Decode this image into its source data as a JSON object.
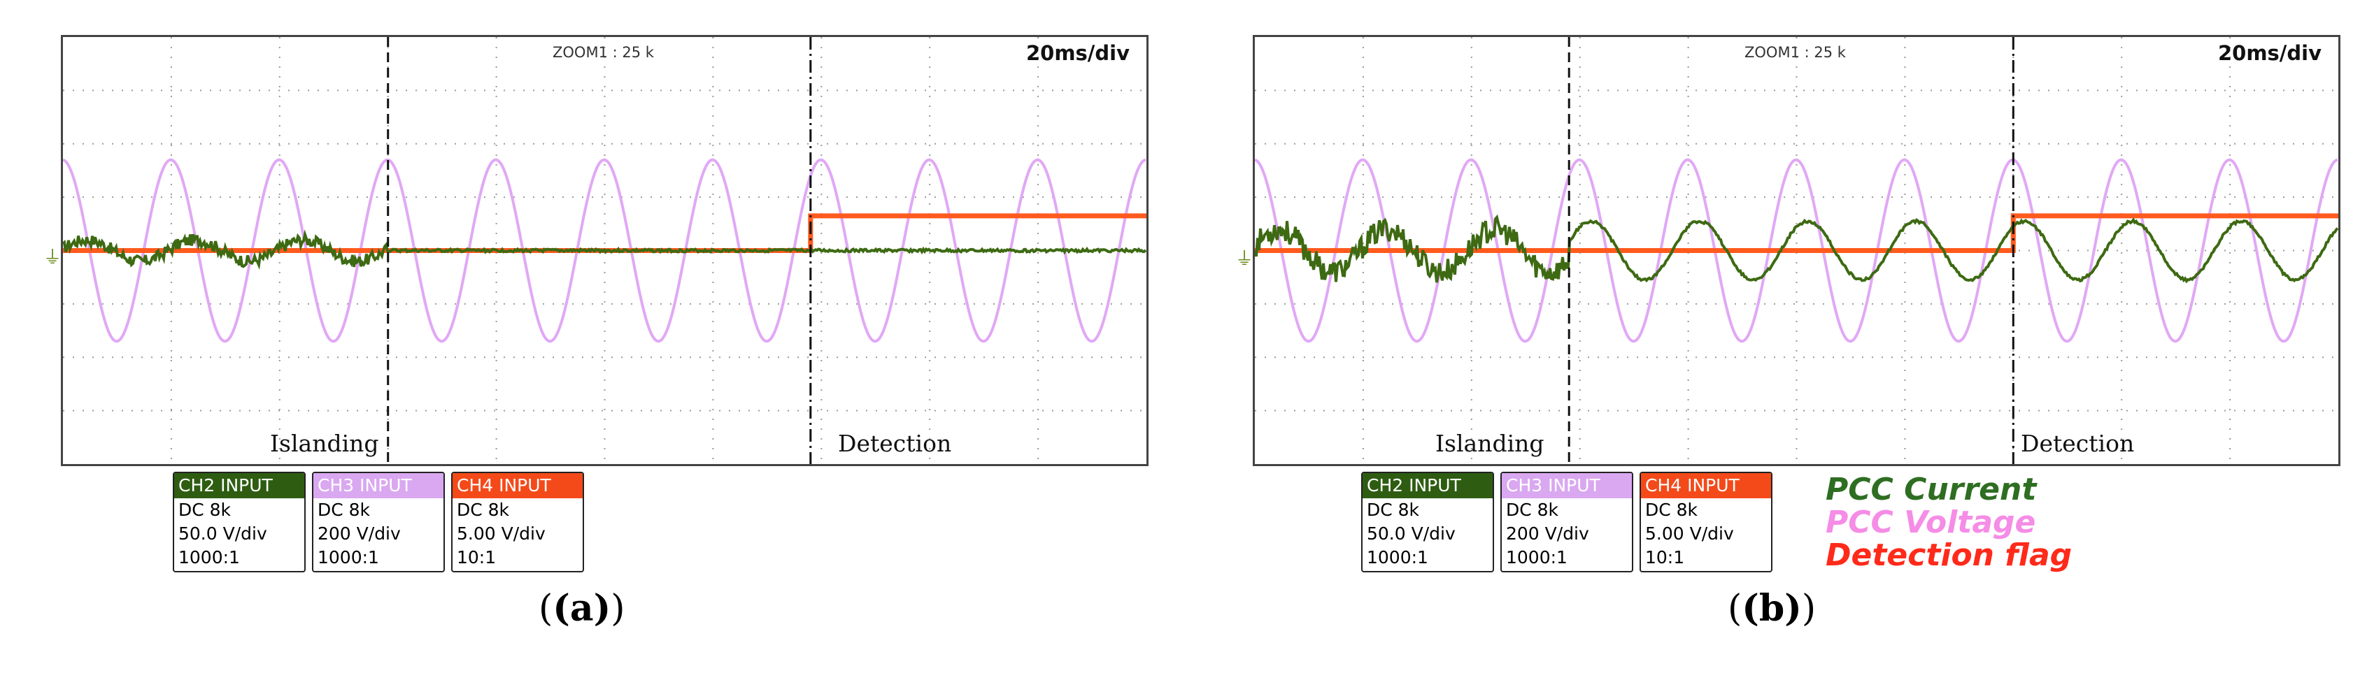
{
  "chart_data": [
    {
      "type": "line",
      "panel": "(a)",
      "zoom_label": "ZOOM1 : 25 k",
      "time_div_label": "20ms/div",
      "x_divisions": 10,
      "y_divisions": 8,
      "events": [
        {
          "label": "Islanding",
          "div": 3.0
        },
        {
          "label": "Detection",
          "div": 6.9
        }
      ],
      "series": [
        {
          "name": "PCC Current",
          "color": "#3d6a12",
          "role": "current",
          "pre_amplitude_div": 0.25,
          "post_amplitude_div": 0.0
        },
        {
          "name": "PCC Voltage",
          "color": "#e1a8f5",
          "role": "voltage",
          "amplitude_div": 1.7,
          "cycles_per_div": 1.0
        },
        {
          "name": "Detection flag",
          "color": "#ff5a1e",
          "role": "flag",
          "low_div": 0.0,
          "high_div": 0.65
        }
      ],
      "channels": [
        {
          "header": "CH2 INPUT",
          "color": "#2e5d12",
          "text_color": "#ffffff",
          "coupling": "DC 8k",
          "scale": "50.0 V/div",
          "probe": "1000:1"
        },
        {
          "header": "CH3 INPUT",
          "color": "#d9a8f0",
          "text_color": "#ffffff",
          "coupling": "DC 8k",
          "scale": "200 V/div",
          "probe": "1000:1"
        },
        {
          "header": "CH4 INPUT",
          "color": "#f44a1a",
          "text_color": "#ffffff",
          "coupling": "DC 8k",
          "scale": "5.00 V/div",
          "probe": "10:1"
        }
      ]
    },
    {
      "type": "line",
      "panel": "(b)",
      "zoom_label": "ZOOM1 : 25 k",
      "time_div_label": "20ms/div",
      "x_divisions": 10,
      "y_divisions": 8,
      "events": [
        {
          "label": "Islanding",
          "div": 2.9
        },
        {
          "label": "Detection",
          "div": 7.0
        }
      ],
      "series": [
        {
          "name": "PCC Current",
          "color": "#3d6a12",
          "role": "current",
          "pre_amplitude_div": 0.5,
          "post_amplitude_div": 0.55
        },
        {
          "name": "PCC Voltage",
          "color": "#e1a8f5",
          "role": "voltage",
          "amplitude_div": 1.7,
          "cycles_per_div": 1.0
        },
        {
          "name": "Detection flag",
          "color": "#ff5a1e",
          "role": "flag",
          "low_div": 0.0,
          "high_div": 0.65
        }
      ],
      "channels": [
        {
          "header": "CH2 INPUT",
          "color": "#2e5d12",
          "text_color": "#ffffff",
          "coupling": "DC 8k",
          "scale": "50.0 V/div",
          "probe": "1000:1"
        },
        {
          "header": "CH3 INPUT",
          "color": "#d9a8f0",
          "text_color": "#ffffff",
          "coupling": "DC 8k",
          "scale": "200 V/div",
          "probe": "1000:1"
        },
        {
          "header": "CH4 INPUT",
          "color": "#f44a1a",
          "text_color": "#ffffff",
          "coupling": "DC 8k",
          "scale": "5.00 V/div",
          "probe": "10:1"
        }
      ]
    }
  ],
  "captions": {
    "a": "(a)",
    "b": "(b)"
  },
  "legend": [
    {
      "label": "PCC Current",
      "color": "#2e6e22"
    },
    {
      "label": "PCC Voltage",
      "color": "#f58ce6"
    },
    {
      "label": "Detection flag",
      "color": "#ff2a1a"
    }
  ]
}
